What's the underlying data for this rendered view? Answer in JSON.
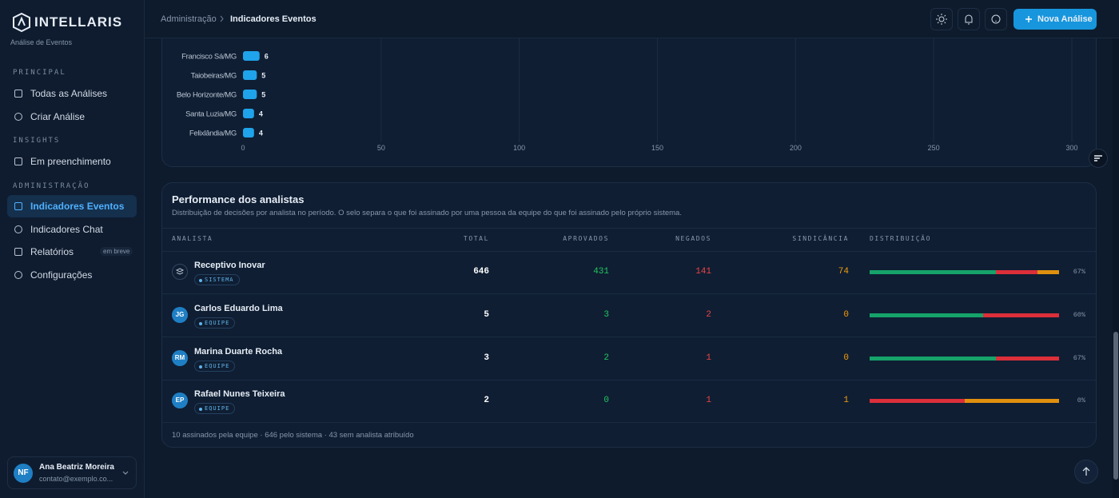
{
  "sidebar": {
    "brand": "INTELLARIS",
    "subtitle": "Análise de Eventos",
    "sections": [
      {
        "title": "PRINCIPAL",
        "items": [
          "Todas as Análises",
          "Criar Análise"
        ]
      },
      {
        "title": "INSIGHTS",
        "items": [
          "Em preenchimento"
        ]
      },
      {
        "title": "ADMINISTRAÇÃO",
        "items": [
          "Indicadores Eventos",
          "Indicadores Chat",
          "Relatórios",
          "Configurações"
        ]
      }
    ],
    "badge": "em breve",
    "user": {
      "initials": "NF",
      "name": "Ana Beatriz Moreira",
      "email": "contato@exemplo.co..."
    }
  },
  "header": {
    "breadcrumb": [
      "Administração",
      "Indicadores Eventos"
    ],
    "button": "Nova Análise"
  },
  "chart_data": {
    "type": "bar",
    "orientation": "horizontal",
    "categories": [
      "Francisco Sá/MG",
      "Taiobeiras/MG",
      "Belo Horizonte/MG",
      "Santa Luzia/MG",
      "Felixlândia/MG"
    ],
    "values": [
      6,
      5,
      5,
      4,
      4
    ],
    "color": "#1fa3ea",
    "xlim": [
      0,
      300
    ],
    "xticks": [
      0,
      50,
      100,
      150,
      200,
      250,
      300
    ],
    "grid": true
  },
  "table": {
    "title": "Performance dos analistas",
    "subtitle": "Distribuição de decisões por analista no período. O selo separa o que foi assinado por uma pessoa da equipe do que foi assinado pelo próprio sistema.",
    "columns": [
      "ANALISTA",
      "TOTAL",
      "APROVADOS",
      "NEGADOS",
      "SINDICÂNCIA",
      "DISTRIBUIÇÃO"
    ],
    "rows": [
      {
        "name": "Receptivo Inovar",
        "tag": "SISTEMA",
        "total": 646,
        "approved": 431,
        "denied": 141,
        "inquiry": 74,
        "share": "67%"
      },
      {
        "avatar": "JG",
        "name": "Carlos Eduardo Lima",
        "tag": "EQUIPE",
        "total": 5,
        "approved": 3,
        "denied": 2,
        "inquiry": 0,
        "share": "60%"
      },
      {
        "avatar": "RM",
        "name": "Marina Duarte Rocha",
        "tag": "EQUIPE",
        "total": 3,
        "approved": 2,
        "denied": 1,
        "inquiry": 0,
        "share": "67%"
      },
      {
        "avatar": "EP",
        "name": "Rafael Nunes Teixeira",
        "tag": "EQUIPE",
        "total": 2,
        "approved": 0,
        "denied": 1,
        "inquiry": 1,
        "share": "0%"
      }
    ],
    "footer": "10 assinados pela equipe · 646 pelo sistema · 43 sem analista atribuído"
  }
}
